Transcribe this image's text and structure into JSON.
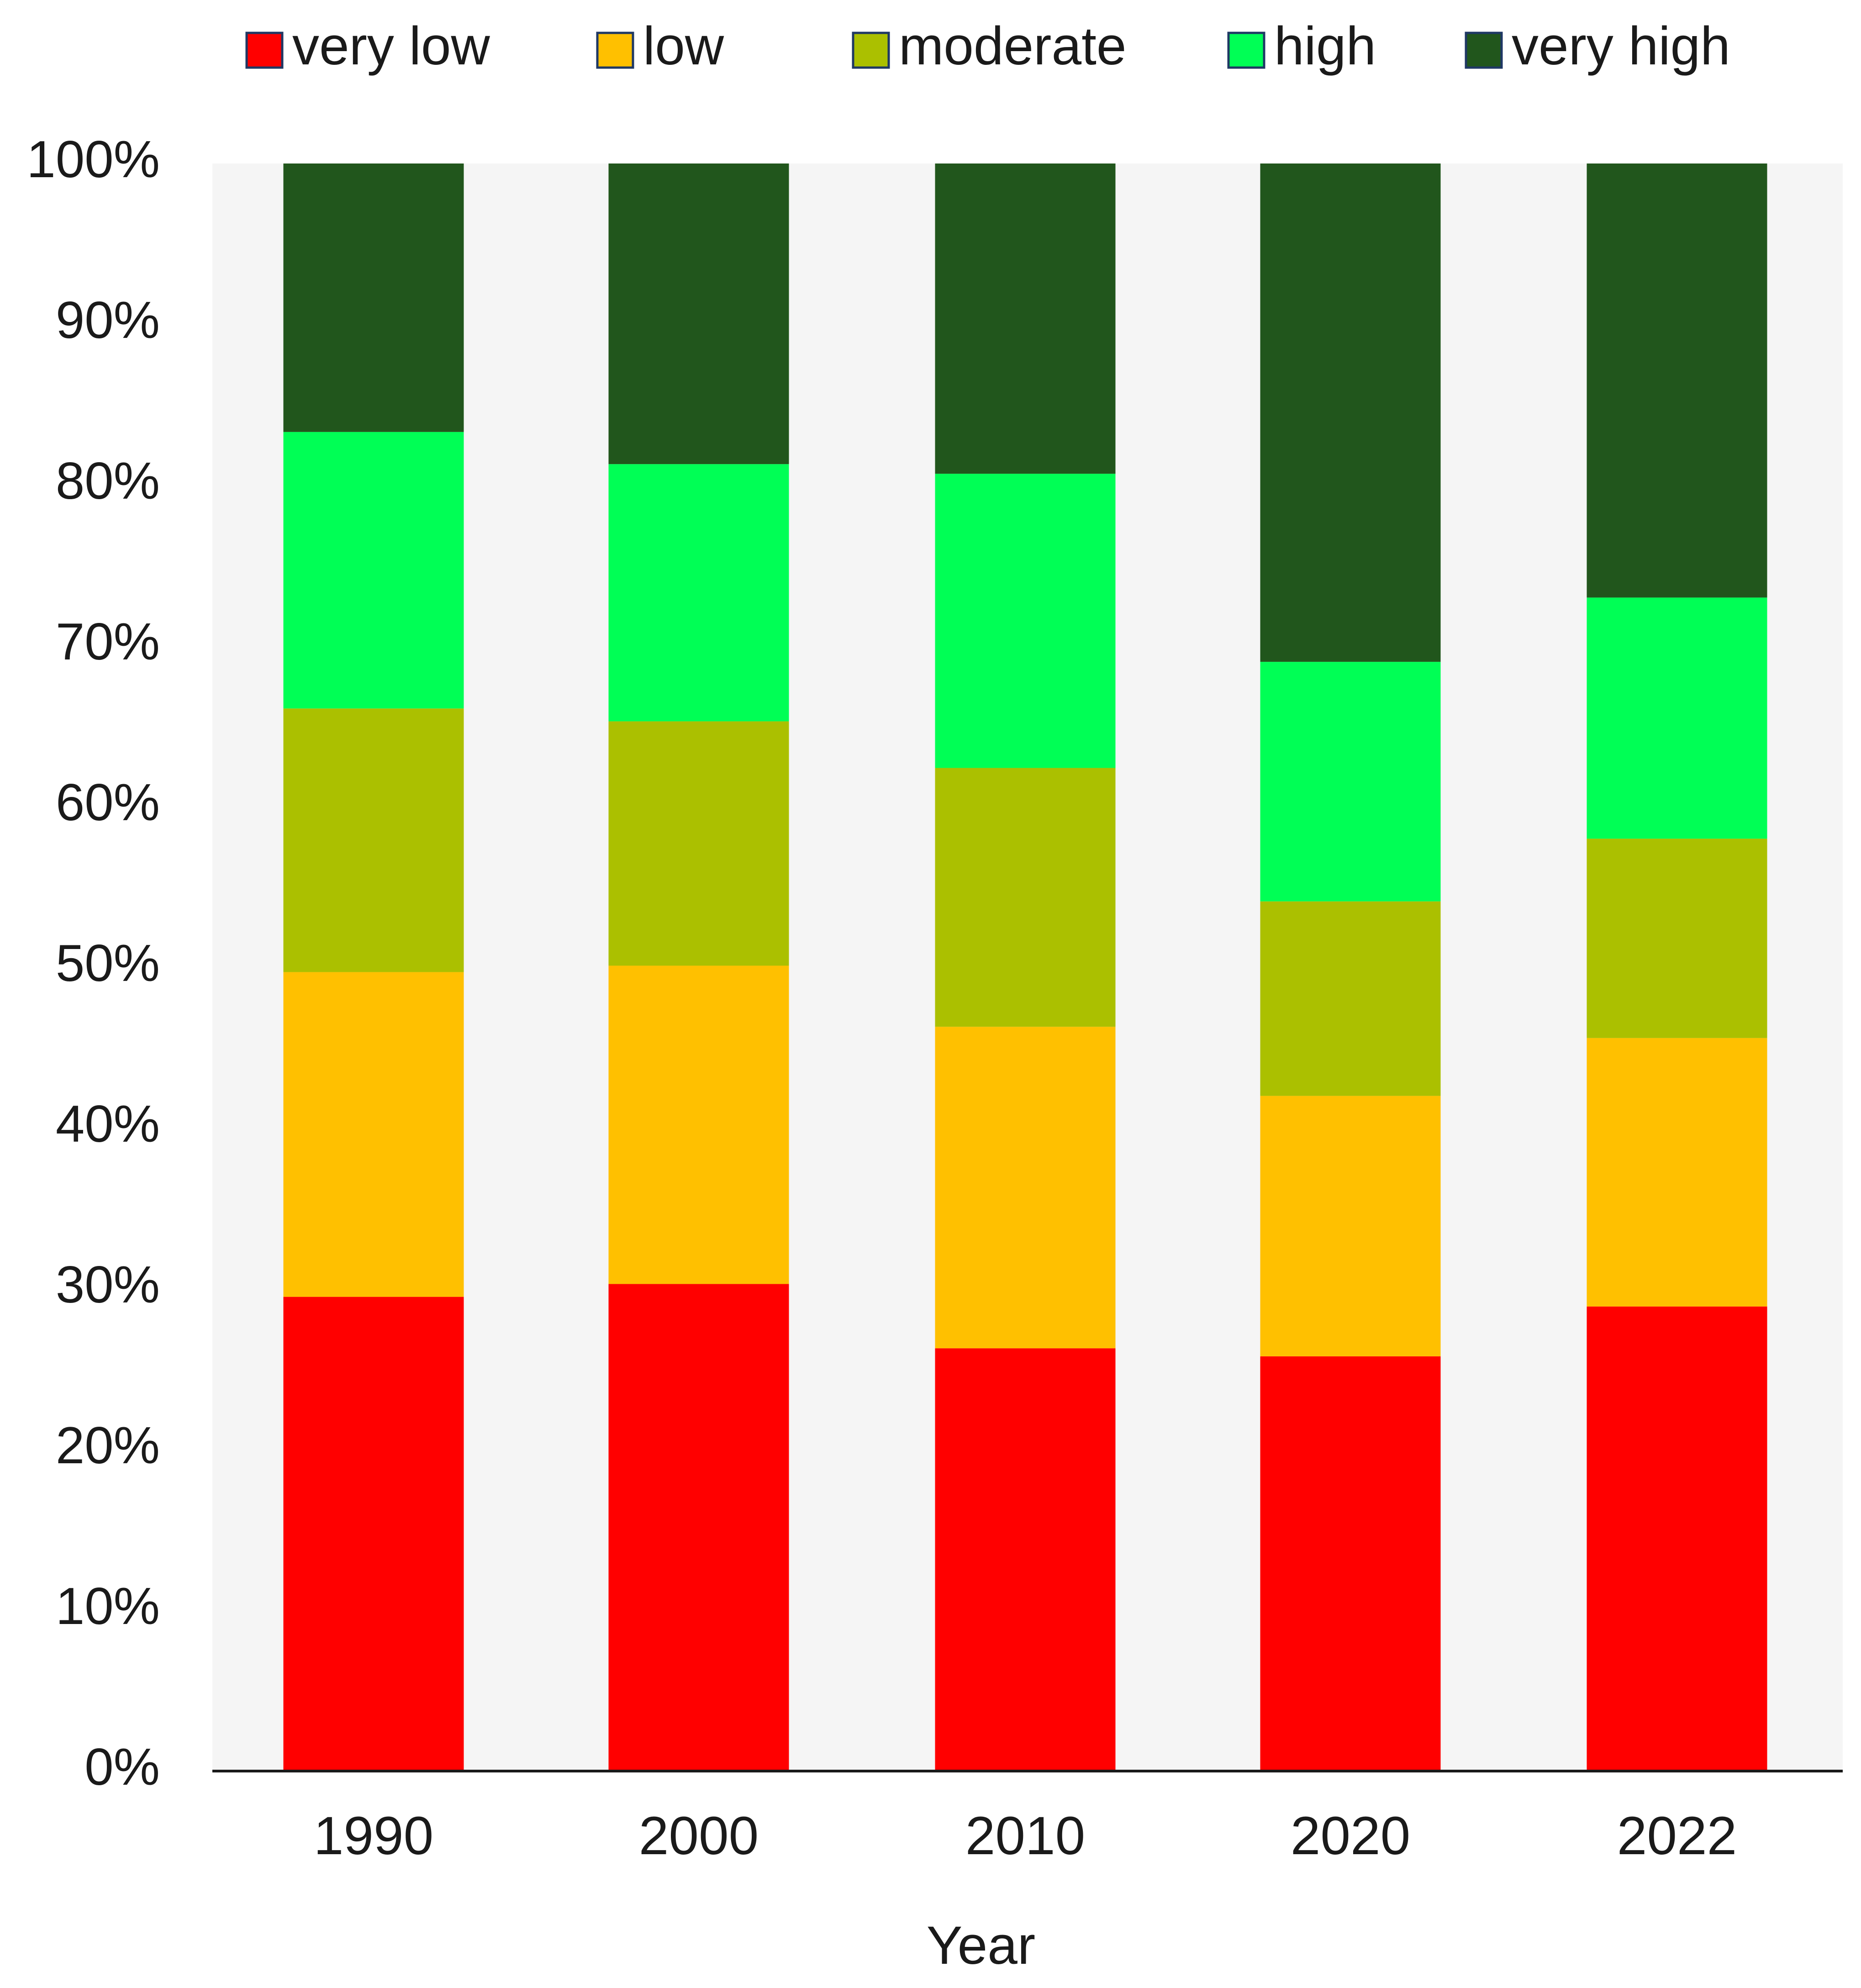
{
  "chart_data": {
    "type": "bar",
    "stacked": true,
    "percent_stacked": true,
    "title": "",
    "xlabel": "Year",
    "ylabel": "",
    "ylim": [
      0,
      100
    ],
    "ytick_values": [
      0,
      10,
      20,
      30,
      40,
      50,
      60,
      70,
      80,
      90,
      100
    ],
    "ytick_labels": [
      "0%",
      "10%",
      "20%",
      "30%",
      "40%",
      "50%",
      "60%",
      "70%",
      "80%",
      "90%",
      "100%"
    ],
    "categories": [
      "1990",
      "2000",
      "2010",
      "2020",
      "2022"
    ],
    "series": [
      {
        "name": "very low",
        "color": "#ff0000",
        "values": [
          29.5,
          30.3,
          26.3,
          25.8,
          28.9
        ]
      },
      {
        "name": "low",
        "color": "#ffc000",
        "values": [
          20.2,
          19.8,
          20.0,
          16.2,
          16.7
        ]
      },
      {
        "name": "moderate",
        "color": "#abc000",
        "values": [
          16.4,
          15.2,
          16.1,
          12.1,
          12.4
        ]
      },
      {
        "name": "high",
        "color": "#00ff55",
        "values": [
          17.2,
          16.0,
          18.3,
          14.9,
          15.0
        ]
      },
      {
        "name": "very high",
        "color": "#21561c",
        "values": [
          16.7,
          18.7,
          19.3,
          31.0,
          27.0
        ]
      }
    ],
    "legend_position": "top",
    "grid": false,
    "plot_background": "#f5f5f5"
  }
}
